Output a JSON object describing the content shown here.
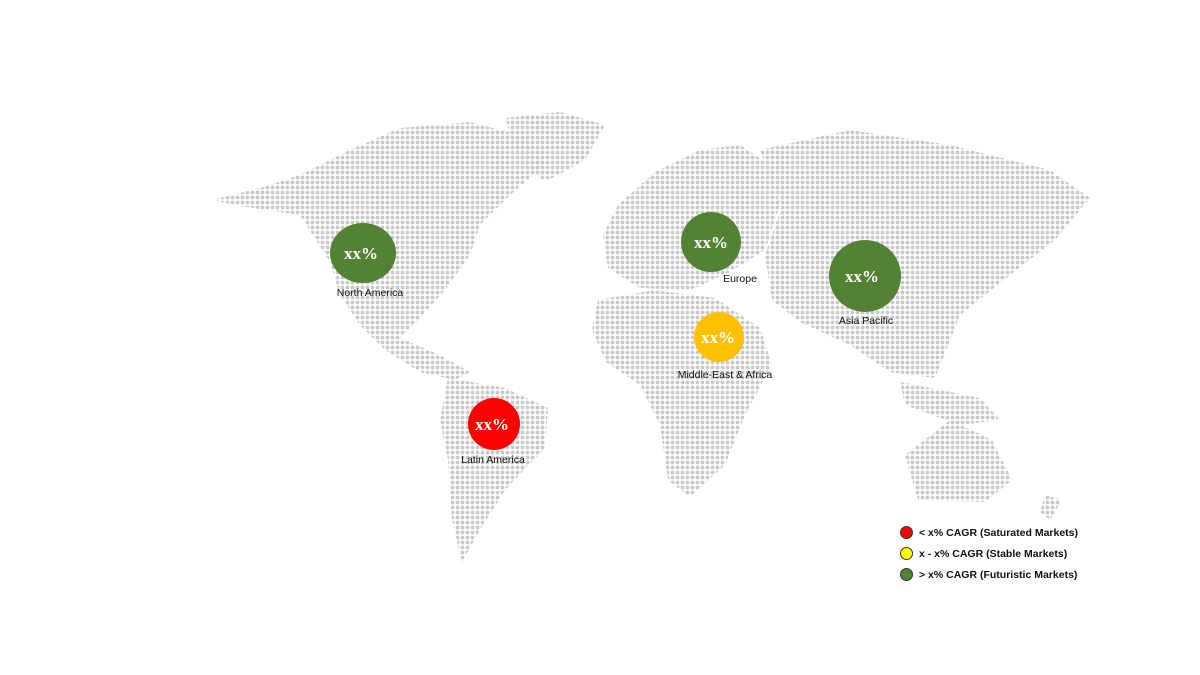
{
  "regions": [
    {
      "name": "North America",
      "value": "xx%",
      "color": "#548235",
      "category": "futuristic"
    },
    {
      "name": "Europe",
      "value": "xx%",
      "color": "#548235",
      "category": "futuristic"
    },
    {
      "name": "Asia Pacific",
      "value": "xx%",
      "color": "#548235",
      "category": "futuristic"
    },
    {
      "name": "Middle-East & Africa",
      "value": "xx%",
      "color": "#FFC000",
      "category": "stable"
    },
    {
      "name": "Latin America",
      "value": "xx%",
      "color": "#FF0000",
      "category": "saturated"
    }
  ],
  "legend": [
    {
      "label": "< x% CAGR (Saturated Markets)",
      "color": "#FF0000"
    },
    {
      "label": "x - x% CAGR (Stable Markets)",
      "color": "#FFFF00"
    },
    {
      "label": "> x% CAGR (Futuristic Markets)",
      "color": "#548235"
    }
  ],
  "map_color": "#C8C8C8"
}
